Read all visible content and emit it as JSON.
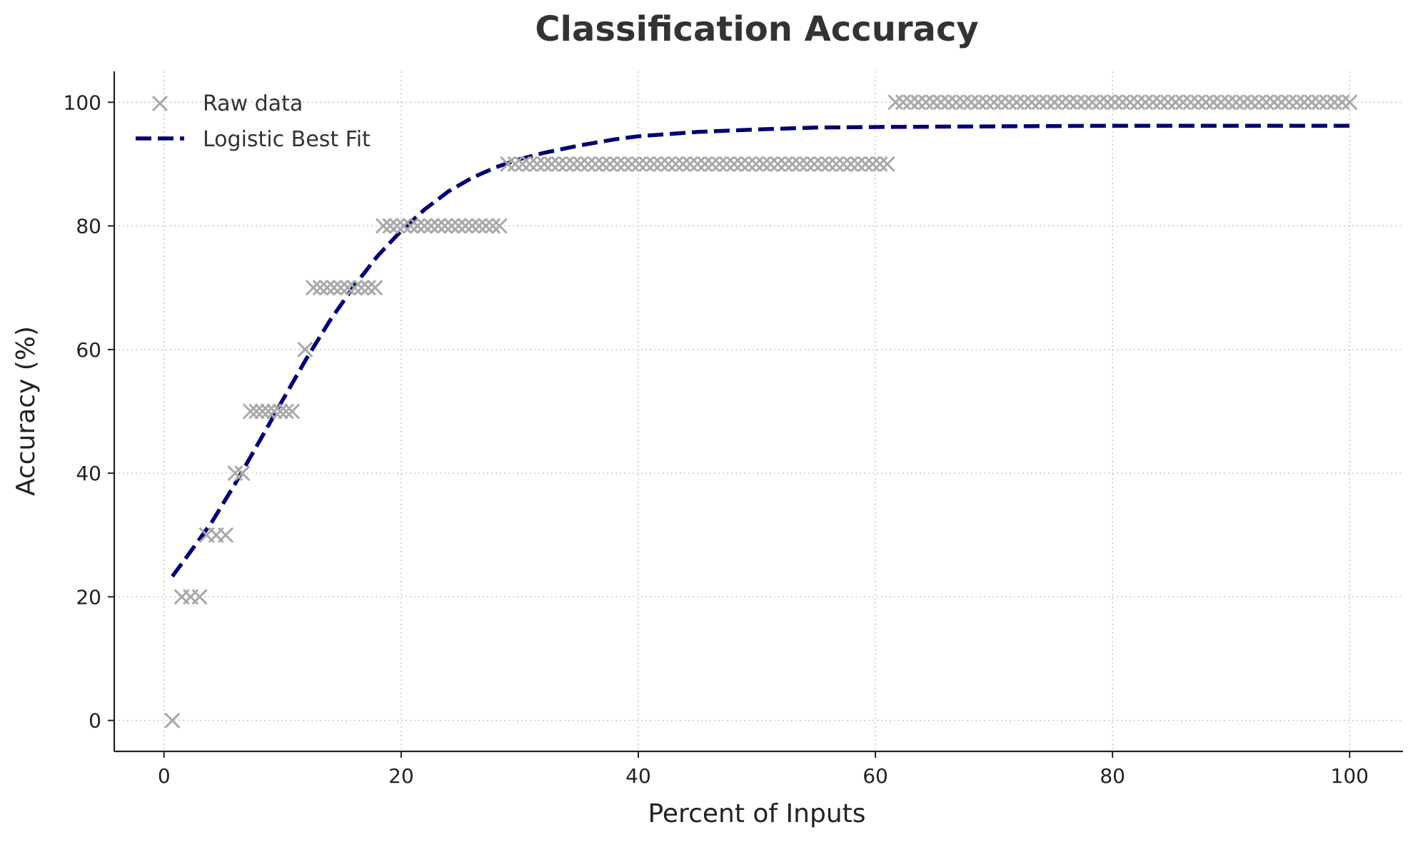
{
  "chart_data": {
    "type": "scatter",
    "title": "Classification Accuracy",
    "xlabel": "Percent of Inputs",
    "ylabel": "Accuracy (%)",
    "xlim": [
      -4.2,
      104.5
    ],
    "ylim": [
      -5,
      105
    ],
    "xticks": [
      0,
      20,
      40,
      60,
      80,
      100
    ],
    "yticks": [
      0,
      20,
      40,
      60,
      80,
      100
    ],
    "grid": true,
    "legend_position": "top-left",
    "colors": {
      "raw": "#a8a8a8",
      "fit": "#000070",
      "axis": "#222222"
    },
    "series": [
      {
        "name": "Raw data",
        "kind": "scatter",
        "marker": "x",
        "groups": [
          {
            "y": 0,
            "x_from": 0.7,
            "x_to": 0.7,
            "count": 1
          },
          {
            "y": 20,
            "x_from": 1.5,
            "x_to": 3.0,
            "count": 3
          },
          {
            "y": 30,
            "x_from": 3.6,
            "x_to": 5.2,
            "count": 3
          },
          {
            "y": 40,
            "x_from": 6.0,
            "x_to": 6.6,
            "count": 2
          },
          {
            "y": 50,
            "x_from": 7.3,
            "x_to": 10.8,
            "count": 8
          },
          {
            "y": 60,
            "x_from": 11.9,
            "x_to": 11.9,
            "count": 1
          },
          {
            "y": 70,
            "x_from": 12.6,
            "x_to": 17.8,
            "count": 10
          },
          {
            "y": 80,
            "x_from": 18.5,
            "x_to": 28.3,
            "count": 18
          },
          {
            "y": 90,
            "x_from": 29.0,
            "x_to": 61.0,
            "count": 53
          },
          {
            "y": 100,
            "x_from": 61.7,
            "x_to": 100.0,
            "count": 61
          }
        ]
      },
      {
        "name": "Logistic Best Fit",
        "kind": "line",
        "dash": "dashed",
        "x": [
          0.7,
          2,
          4,
          6,
          8,
          10,
          12,
          14,
          16,
          18,
          20,
          22,
          24,
          26,
          28,
          30,
          32,
          35,
          38,
          40,
          45,
          50,
          55,
          60,
          70,
          80,
          90,
          100
        ],
        "y": [
          23.3,
          26.7,
          32.0,
          38.3,
          45.0,
          51.8,
          58.5,
          64.7,
          70.2,
          75.1,
          79.2,
          82.7,
          85.6,
          87.8,
          89.5,
          90.8,
          91.8,
          93.0,
          94.0,
          94.5,
          95.2,
          95.6,
          95.9,
          96.0,
          96.1,
          96.2,
          96.2,
          96.2
        ]
      }
    ]
  }
}
